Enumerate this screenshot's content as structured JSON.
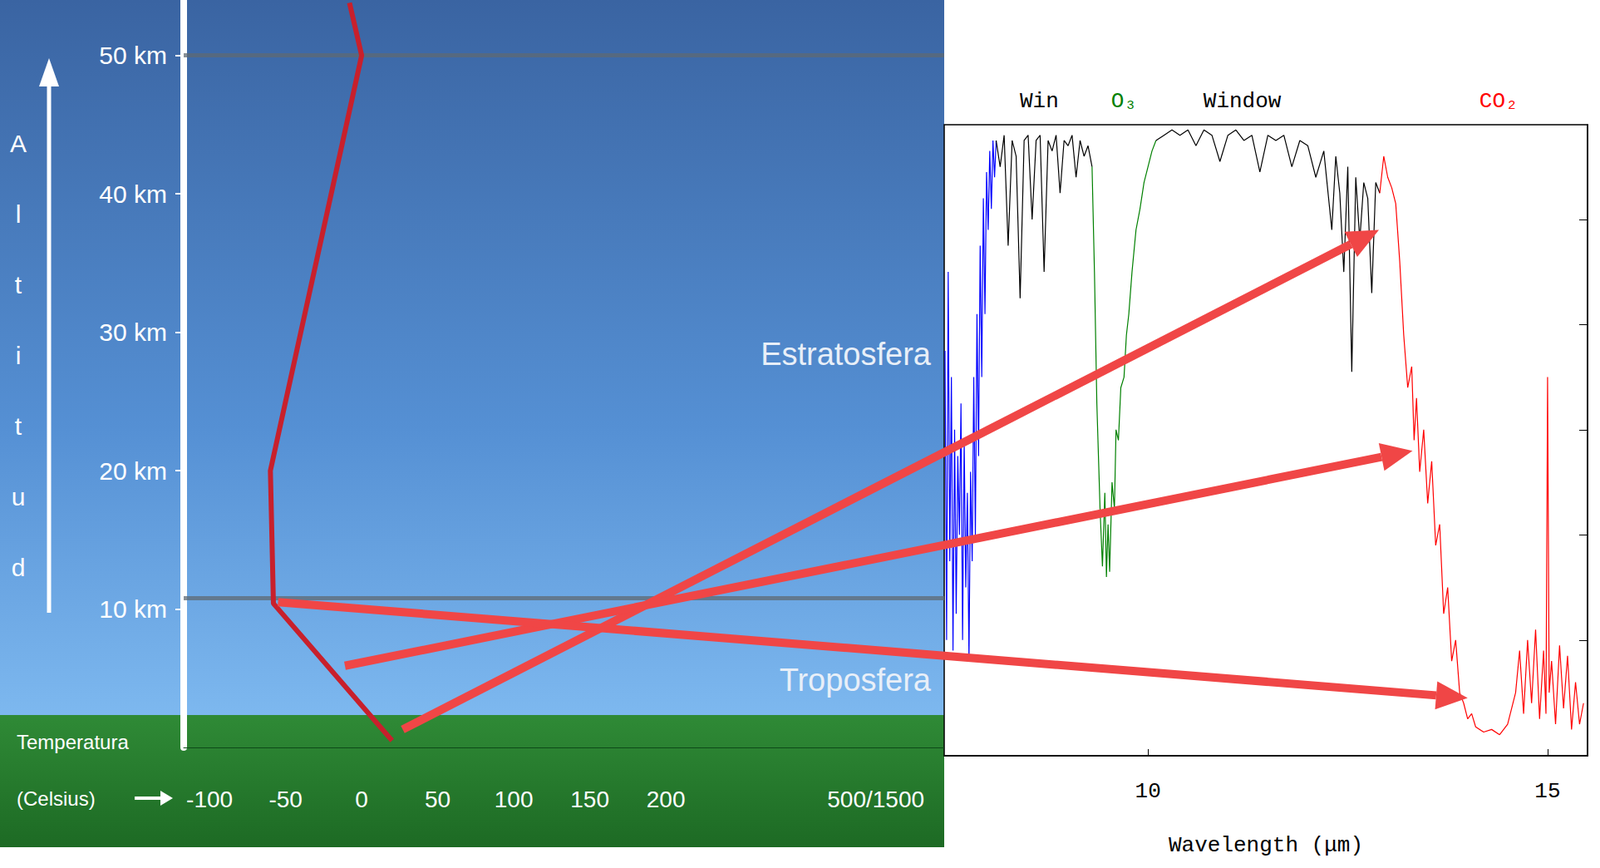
{
  "chart_data": [
    {
      "type": "line",
      "x_label": "Temperatura (Celsius)",
      "y_label": "Altitud",
      "color": "#c8202c",
      "x": [
        20,
        -58,
        -60,
        0,
        -8
      ],
      "values": [
        0.5,
        10.4,
        20,
        50,
        53.8
      ],
      "xlim": [
        -117,
        383
      ],
      "ylim": [
        0,
        54
      ],
      "xticks": [
        -100,
        -50,
        0,
        50,
        100,
        150,
        200,
        {
          "value": 338,
          "label": "500/1500"
        }
      ],
      "yticks": [
        {
          "value": 10,
          "label": "10 km"
        },
        {
          "value": 20,
          "label": "20 km"
        },
        {
          "value": 30,
          "label": "30 km"
        },
        {
          "value": 40,
          "label": "40 km"
        },
        {
          "value": 50,
          "label": "50 km"
        }
      ],
      "layers": [
        {
          "name": "Troposfera",
          "bottom": 0,
          "top": 10.8
        },
        {
          "name": "Estratosfera",
          "bottom": 10.8,
          "top": 50
        }
      ]
    },
    {
      "type": "line",
      "x_label": "Wavelength (μm)",
      "xlim": [
        7.45,
        15.5
      ],
      "ylim": [
        178,
        298
      ],
      "xticks": [
        10,
        15
      ],
      "yticks": [
        200,
        220,
        240,
        260,
        280
      ],
      "tick_labels": "x",
      "annotations": [
        {
          "text": "Win",
          "x": 8.64,
          "color": "#000000"
        },
        {
          "text": "O₃",
          "x": 9.7,
          "color": "#008000"
        },
        {
          "text": "Window",
          "x": 11.18,
          "color": "#000000"
        },
        {
          "text": "CO₂",
          "x": 14.39,
          "color": "#ff0000"
        }
      ],
      "series": [
        {
          "color": "#0000ff",
          "x": [
            7.46,
            7.48,
            7.5,
            7.52,
            7.54,
            7.56,
            7.58,
            7.6,
            7.62,
            7.64,
            7.66,
            7.68,
            7.7,
            7.72,
            7.74,
            7.76,
            7.78,
            7.8,
            7.82,
            7.84,
            7.86,
            7.88,
            7.9,
            7.92,
            7.94,
            7.96,
            7.98,
            8.0,
            8.02,
            8.04,
            8.06,
            8.08,
            8.1
          ],
          "values": [
            255,
            200,
            270,
            215,
            250,
            198,
            240,
            205,
            235,
            220,
            245,
            200,
            238,
            210,
            228,
            196,
            232,
            215,
            250,
            220,
            262,
            235,
            275,
            250,
            284,
            262,
            289,
            278,
            293,
            282,
            295,
            288,
            295
          ]
        },
        {
          "color": "#000000",
          "x": [
            8.1,
            8.15,
            8.2,
            8.25,
            8.3,
            8.35,
            8.4,
            8.45,
            8.5,
            8.55,
            8.6,
            8.65,
            8.7,
            8.75,
            8.8,
            8.85,
            8.9,
            8.95,
            9.0,
            9.05,
            9.1,
            9.15,
            9.2,
            9.25,
            9.3
          ],
          "values": [
            295,
            290,
            296,
            275,
            295,
            292,
            265,
            295,
            296,
            280,
            295,
            296,
            270,
            295,
            293,
            296,
            285,
            295,
            294,
            296,
            288,
            295,
            292,
            294,
            290
          ]
        },
        {
          "color": "#008000",
          "x": [
            9.3,
            9.33,
            9.36,
            9.4,
            9.43,
            9.46,
            9.48,
            9.5,
            9.52,
            9.55,
            9.58,
            9.6,
            9.63,
            9.66,
            9.7,
            9.73,
            9.76,
            9.8,
            9.85,
            9.9,
            9.95,
            10.0,
            10.05,
            10.1
          ],
          "values": [
            290,
            270,
            245,
            225,
            214,
            228,
            212,
            222,
            213,
            230,
            225,
            240,
            238,
            248,
            250,
            258,
            262,
            270,
            278,
            282,
            287,
            290,
            293,
            295
          ]
        },
        {
          "color": "#000000",
          "x": [
            10.1,
            10.2,
            10.3,
            10.4,
            10.5,
            10.6,
            10.7,
            10.8,
            10.9,
            11.0,
            11.1,
            11.2,
            11.3,
            11.4,
            11.5,
            11.6,
            11.7,
            11.8,
            11.9,
            12.0,
            12.1,
            12.2,
            12.3,
            12.35,
            12.4,
            12.45,
            12.5,
            12.55,
            12.6,
            12.65,
            12.7,
            12.75,
            12.8,
            12.85,
            12.9
          ],
          "values": [
            295,
            296,
            297,
            296,
            297,
            294,
            297,
            296,
            291,
            296,
            297,
            295,
            296,
            289,
            296,
            295,
            296,
            290,
            295,
            294,
            288,
            293,
            278,
            292,
            285,
            270,
            290,
            251,
            288,
            276,
            287,
            284,
            266,
            287,
            285
          ]
        },
        {
          "color": "#ff0000",
          "x": [
            12.9,
            12.95,
            13.0,
            13.05,
            13.1,
            13.15,
            13.2,
            13.25,
            13.3,
            13.33,
            13.36,
            13.4,
            13.45,
            13.5,
            13.55,
            13.6,
            13.65,
            13.7,
            13.75,
            13.8,
            13.85,
            13.9,
            13.95,
            14.0,
            14.05,
            14.1,
            14.2,
            14.3,
            14.4,
            14.5,
            14.6,
            14.65,
            14.7,
            14.75,
            14.8,
            14.85,
            14.9,
            14.95,
            14.98,
            15.0,
            15.02,
            15.05,
            15.1,
            15.15,
            15.2,
            15.25,
            15.3,
            15.35,
            15.4,
            15.45
          ],
          "values": [
            285,
            292,
            288,
            286,
            283,
            272,
            258,
            248,
            252,
            238,
            246,
            232,
            240,
            226,
            234,
            218,
            222,
            205,
            210,
            196,
            200,
            190,
            188,
            185,
            186,
            183.5,
            182.5,
            183,
            182,
            184,
            190,
            198,
            186,
            200,
            188,
            202,
            185,
            198,
            186,
            250,
            190,
            196,
            184,
            199,
            187,
            197,
            183,
            192,
            184,
            188
          ]
        }
      ]
    }
  ],
  "links": [
    {
      "from_temperature": 27,
      "from_altitude": 1.3,
      "to_wavelength": 12.89,
      "to_value": 278
    },
    {
      "from_temperature": -11,
      "from_altitude": 5.9,
      "to_wavelength": 13.31,
      "to_value": 236
    },
    {
      "from_temperature": -55,
      "from_altitude": 10.5,
      "to_wavelength": 14.0,
      "to_value": 189
    }
  ]
}
